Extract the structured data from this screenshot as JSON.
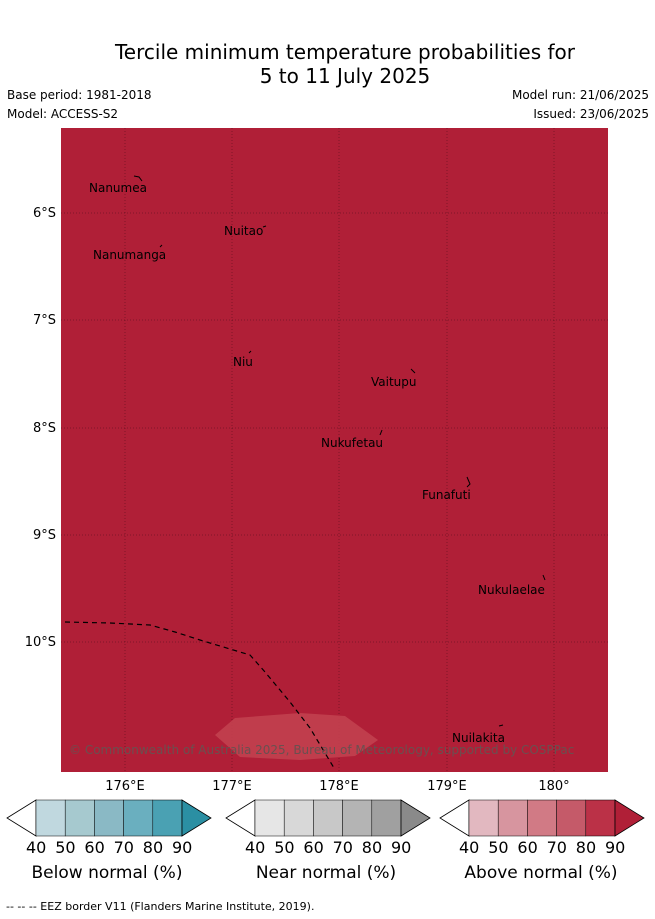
{
  "title_line1": "Tercile minimum temperature probabilities for",
  "title_line2": "5 to 11 July 2025",
  "base_period": "Base period: 1981-2018",
  "model": "Model: ACCESS-S2",
  "model_run": "Model run: 21/06/2025",
  "issued": "Issued: 23/06/2025",
  "map": {
    "fill_color": "#b01f37",
    "latitude_labels": [
      "6°S",
      "7°S",
      "8°S",
      "9°S",
      "10°S"
    ],
    "longitude_labels": [
      "176°E",
      "177°E",
      "178°E",
      "179°E",
      "180°"
    ],
    "places": [
      "Nanumea",
      "Nuitao",
      "Nanumanga",
      "Niu",
      "Vaitupu",
      "Nukufetau",
      "Funafuti",
      "Nukulaelae",
      "Nuilakita"
    ],
    "copyright": "© Commonwealth of Australia 2025, Bureau of Meteorology, supported by COSPPac"
  },
  "colorbars": [
    {
      "label": "Below normal (%)",
      "ticks": [
        "40",
        "50",
        "60",
        "70",
        "80",
        "90"
      ],
      "colors": [
        "#ffffff",
        "#c0d8df",
        "#a6c9cf",
        "#8ab9c5",
        "#6aafbf",
        "#4aa1b3",
        "#2b8fa3"
      ]
    },
    {
      "label": "Near normal (%)",
      "ticks": [
        "40",
        "50",
        "60",
        "70",
        "80",
        "90"
      ],
      "colors": [
        "#ffffff",
        "#e6e6e6",
        "#d8d8d8",
        "#c8c8c8",
        "#b4b4b4",
        "#a0a0a0",
        "#8a8a8a"
      ]
    },
    {
      "label": "Above normal (%)",
      "ticks": [
        "40",
        "50",
        "60",
        "70",
        "80",
        "90"
      ],
      "colors": [
        "#ffffff",
        "#e2b8c0",
        "#d7959f",
        "#d17a85",
        "#c55a69",
        "#bb3147",
        "#b01f37"
      ]
    }
  ],
  "footer": "--  --  -- EEZ border V11 (Flanders Marine Institute, 2019)."
}
